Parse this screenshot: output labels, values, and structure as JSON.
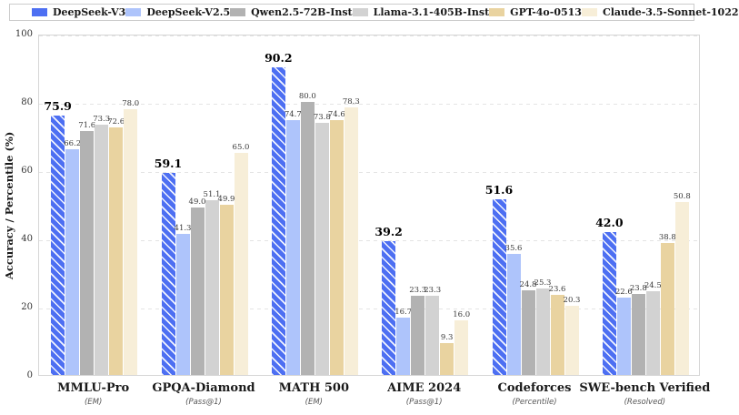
{
  "chart_data": {
    "type": "bar",
    "title": "",
    "ylabel": "Accuracy / Percentile (%)",
    "ylim": [
      0,
      100
    ],
    "yticks": [
      0,
      20,
      40,
      60,
      80,
      100
    ],
    "grid": "horizontal-dashed",
    "legend_position": "top",
    "categories": [
      "MMLU-Pro",
      "GPQA-Diamond",
      "MATH 500",
      "AIME 2024",
      "Codeforces",
      "SWE-bench Verified"
    ],
    "category_subtitles": [
      "(EM)",
      "(Pass@1)",
      "(EM)",
      "(Pass@1)",
      "(Percentile)",
      "(Resolved)"
    ],
    "series": [
      {
        "name": "DeepSeek-V3",
        "color": "#4d6ff2",
        "hatch": "/",
        "emphasized": true,
        "values": [
          75.9,
          59.1,
          90.2,
          39.2,
          51.6,
          42.0
        ]
      },
      {
        "name": "DeepSeek-V2.5",
        "color": "#aec4fb",
        "values": [
          66.2,
          41.3,
          74.7,
          16.7,
          35.6,
          22.6
        ]
      },
      {
        "name": "Qwen2.5-72B-Inst",
        "color": "#b2b2b2",
        "values": [
          71.6,
          49.0,
          80.0,
          23.3,
          24.8,
          23.8
        ]
      },
      {
        "name": "Llama-3.1-405B-Inst",
        "color": "#d2d2d2",
        "values": [
          73.3,
          51.1,
          73.8,
          23.3,
          25.3,
          24.5
        ]
      },
      {
        "name": "GPT-4o-0513",
        "color": "#e9d3a0",
        "values": [
          72.6,
          49.9,
          74.6,
          9.3,
          23.6,
          38.8
        ]
      },
      {
        "name": "Claude-3.5-Sonnet-1022",
        "color": "#f7eed8",
        "values": [
          78.0,
          65.0,
          78.3,
          16.0,
          20.3,
          50.8
        ]
      }
    ]
  }
}
